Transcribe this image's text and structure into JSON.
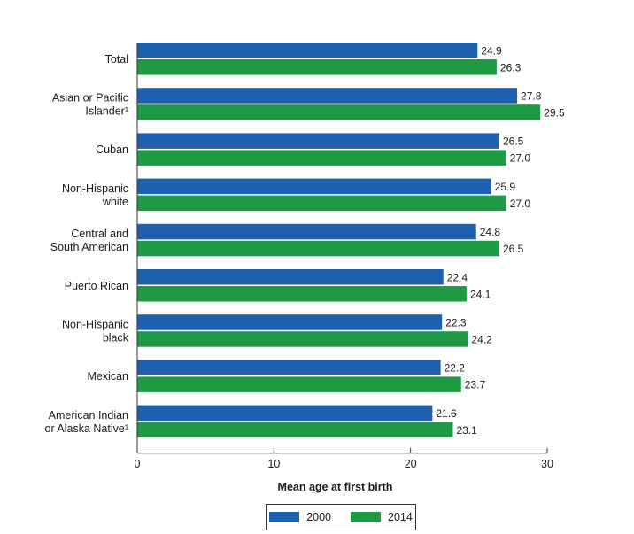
{
  "colors": {
    "series_2000": "#1f5fb0",
    "series_2014": "#1e9a45",
    "axis": "#333333"
  },
  "chart_data": {
    "type": "bar",
    "orientation": "horizontal",
    "categories": [
      [
        "Total"
      ],
      [
        "Asian or Pacific",
        "Islander¹"
      ],
      [
        "Cuban"
      ],
      [
        "Non-Hispanic",
        "white"
      ],
      [
        "Central and",
        "South American"
      ],
      [
        "Puerto Rican"
      ],
      [
        "Non-Hispanic",
        "black"
      ],
      [
        "Mexican"
      ],
      [
        "American Indian",
        "or Alaska Native¹"
      ]
    ],
    "series": [
      {
        "name": "2000",
        "values": [
          24.9,
          27.8,
          26.5,
          25.9,
          24.8,
          22.4,
          22.3,
          22.2,
          21.6
        ]
      },
      {
        "name": "2014",
        "values": [
          26.3,
          29.5,
          27.0,
          27.0,
          26.5,
          24.1,
          24.2,
          23.7,
          23.1
        ]
      }
    ],
    "value_labels": [
      [
        "24.9",
        "27.8",
        "26.5",
        "25.9",
        "24.8",
        "22.4",
        "22.3",
        "22.2",
        "21.6"
      ],
      [
        "26.3",
        "29.5",
        "27.0",
        "27.0",
        "26.5",
        "24.1",
        "24.2",
        "23.7",
        "23.1"
      ]
    ],
    "xlabel": "Mean age at first birth",
    "xlim": [
      0,
      30
    ],
    "xticks": [
      0,
      10,
      20,
      30
    ],
    "tick_labels": [
      "0",
      "10",
      "20",
      "30"
    ],
    "legend_position": "bottom-center",
    "grid": false
  },
  "legend": {
    "items": [
      "2000",
      "2014"
    ]
  }
}
